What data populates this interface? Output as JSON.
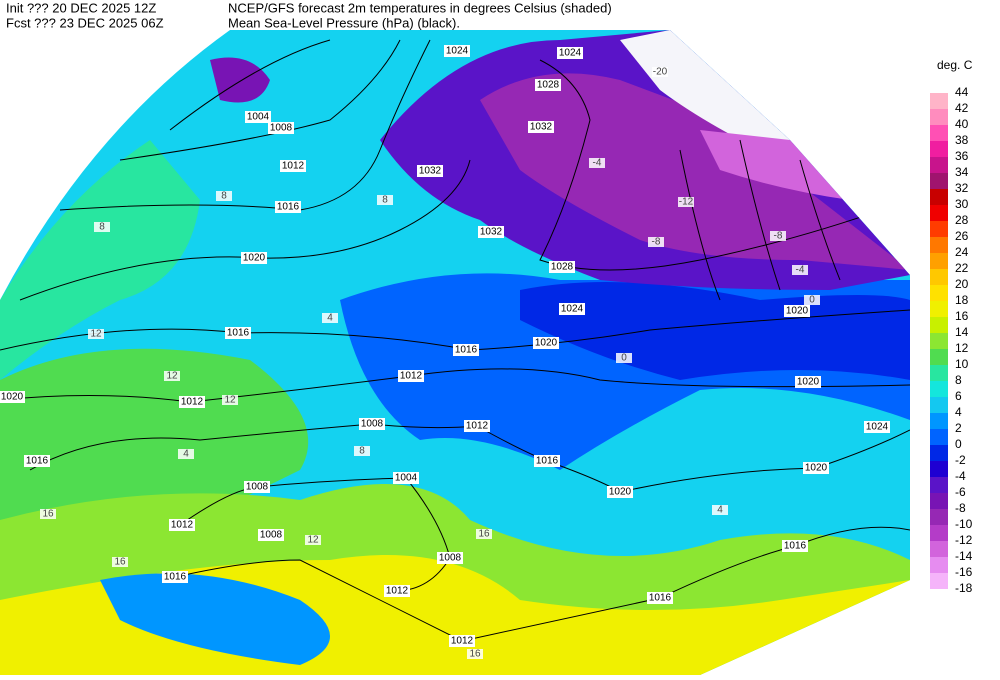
{
  "header": {
    "init": "Init  ??? 20 DEC 2025 12Z",
    "fcst": "Fcst ??? 23 DEC 2025 06Z",
    "title": "NCEP/GFS forecast 2m temperatures in degrees Celsius (shaded)",
    "subtitle": "Mean Sea-Level Pressure (hPa) (black)."
  },
  "colorbar": {
    "label": "deg. C",
    "levels": [
      44,
      42,
      40,
      38,
      36,
      34,
      32,
      30,
      28,
      26,
      24,
      22,
      20,
      18,
      16,
      14,
      12,
      10,
      8,
      6,
      4,
      2,
      0,
      -2,
      -4,
      -6,
      -8,
      -10,
      -12,
      -14,
      -16,
      -18
    ],
    "colors": [
      "#ffb4c8",
      "#ff8cbe",
      "#ff50b4",
      "#f01ea0",
      "#c8148c",
      "#a0146e",
      "#c80000",
      "#f00000",
      "#ff3c00",
      "#ff7800",
      "#ffa000",
      "#ffc800",
      "#ffe100",
      "#f0f000",
      "#c8f000",
      "#8ce632",
      "#50dc50",
      "#28e6a0",
      "#14e6dc",
      "#14c8f0",
      "#0096ff",
      "#0064ff",
      "#0028e6",
      "#1e00d2",
      "#5a14c8",
      "#7814b4",
      "#9628b4",
      "#b43cc8",
      "#d264dc",
      "#e68cf0",
      "#f5b4fa"
    ]
  },
  "map": {
    "isobar_labels": [
      "1024",
      "1024",
      "1028",
      "1032",
      "1004",
      "1008",
      "1012",
      "1032",
      "1016",
      "1020",
      "1032",
      "1028",
      "1024",
      "1020",
      "1016",
      "1012",
      "1016",
      "1012",
      "1020",
      "1016",
      "1008",
      "1012",
      "1004",
      "1008",
      "1012",
      "1008",
      "1016",
      "1020",
      "1008",
      "1012",
      "1016",
      "1012",
      "1016",
      "1016",
      "1020",
      "1024",
      "1020",
      "1020"
    ],
    "temperature_labels": [
      "12",
      "12",
      "12",
      "16",
      "16",
      "16",
      "8",
      "8",
      "8",
      "-12",
      "-8",
      "-8",
      "-4",
      "-4",
      "0",
      "0",
      "4",
      "4",
      "4",
      "8",
      "12",
      "16",
      "-20"
    ]
  }
}
